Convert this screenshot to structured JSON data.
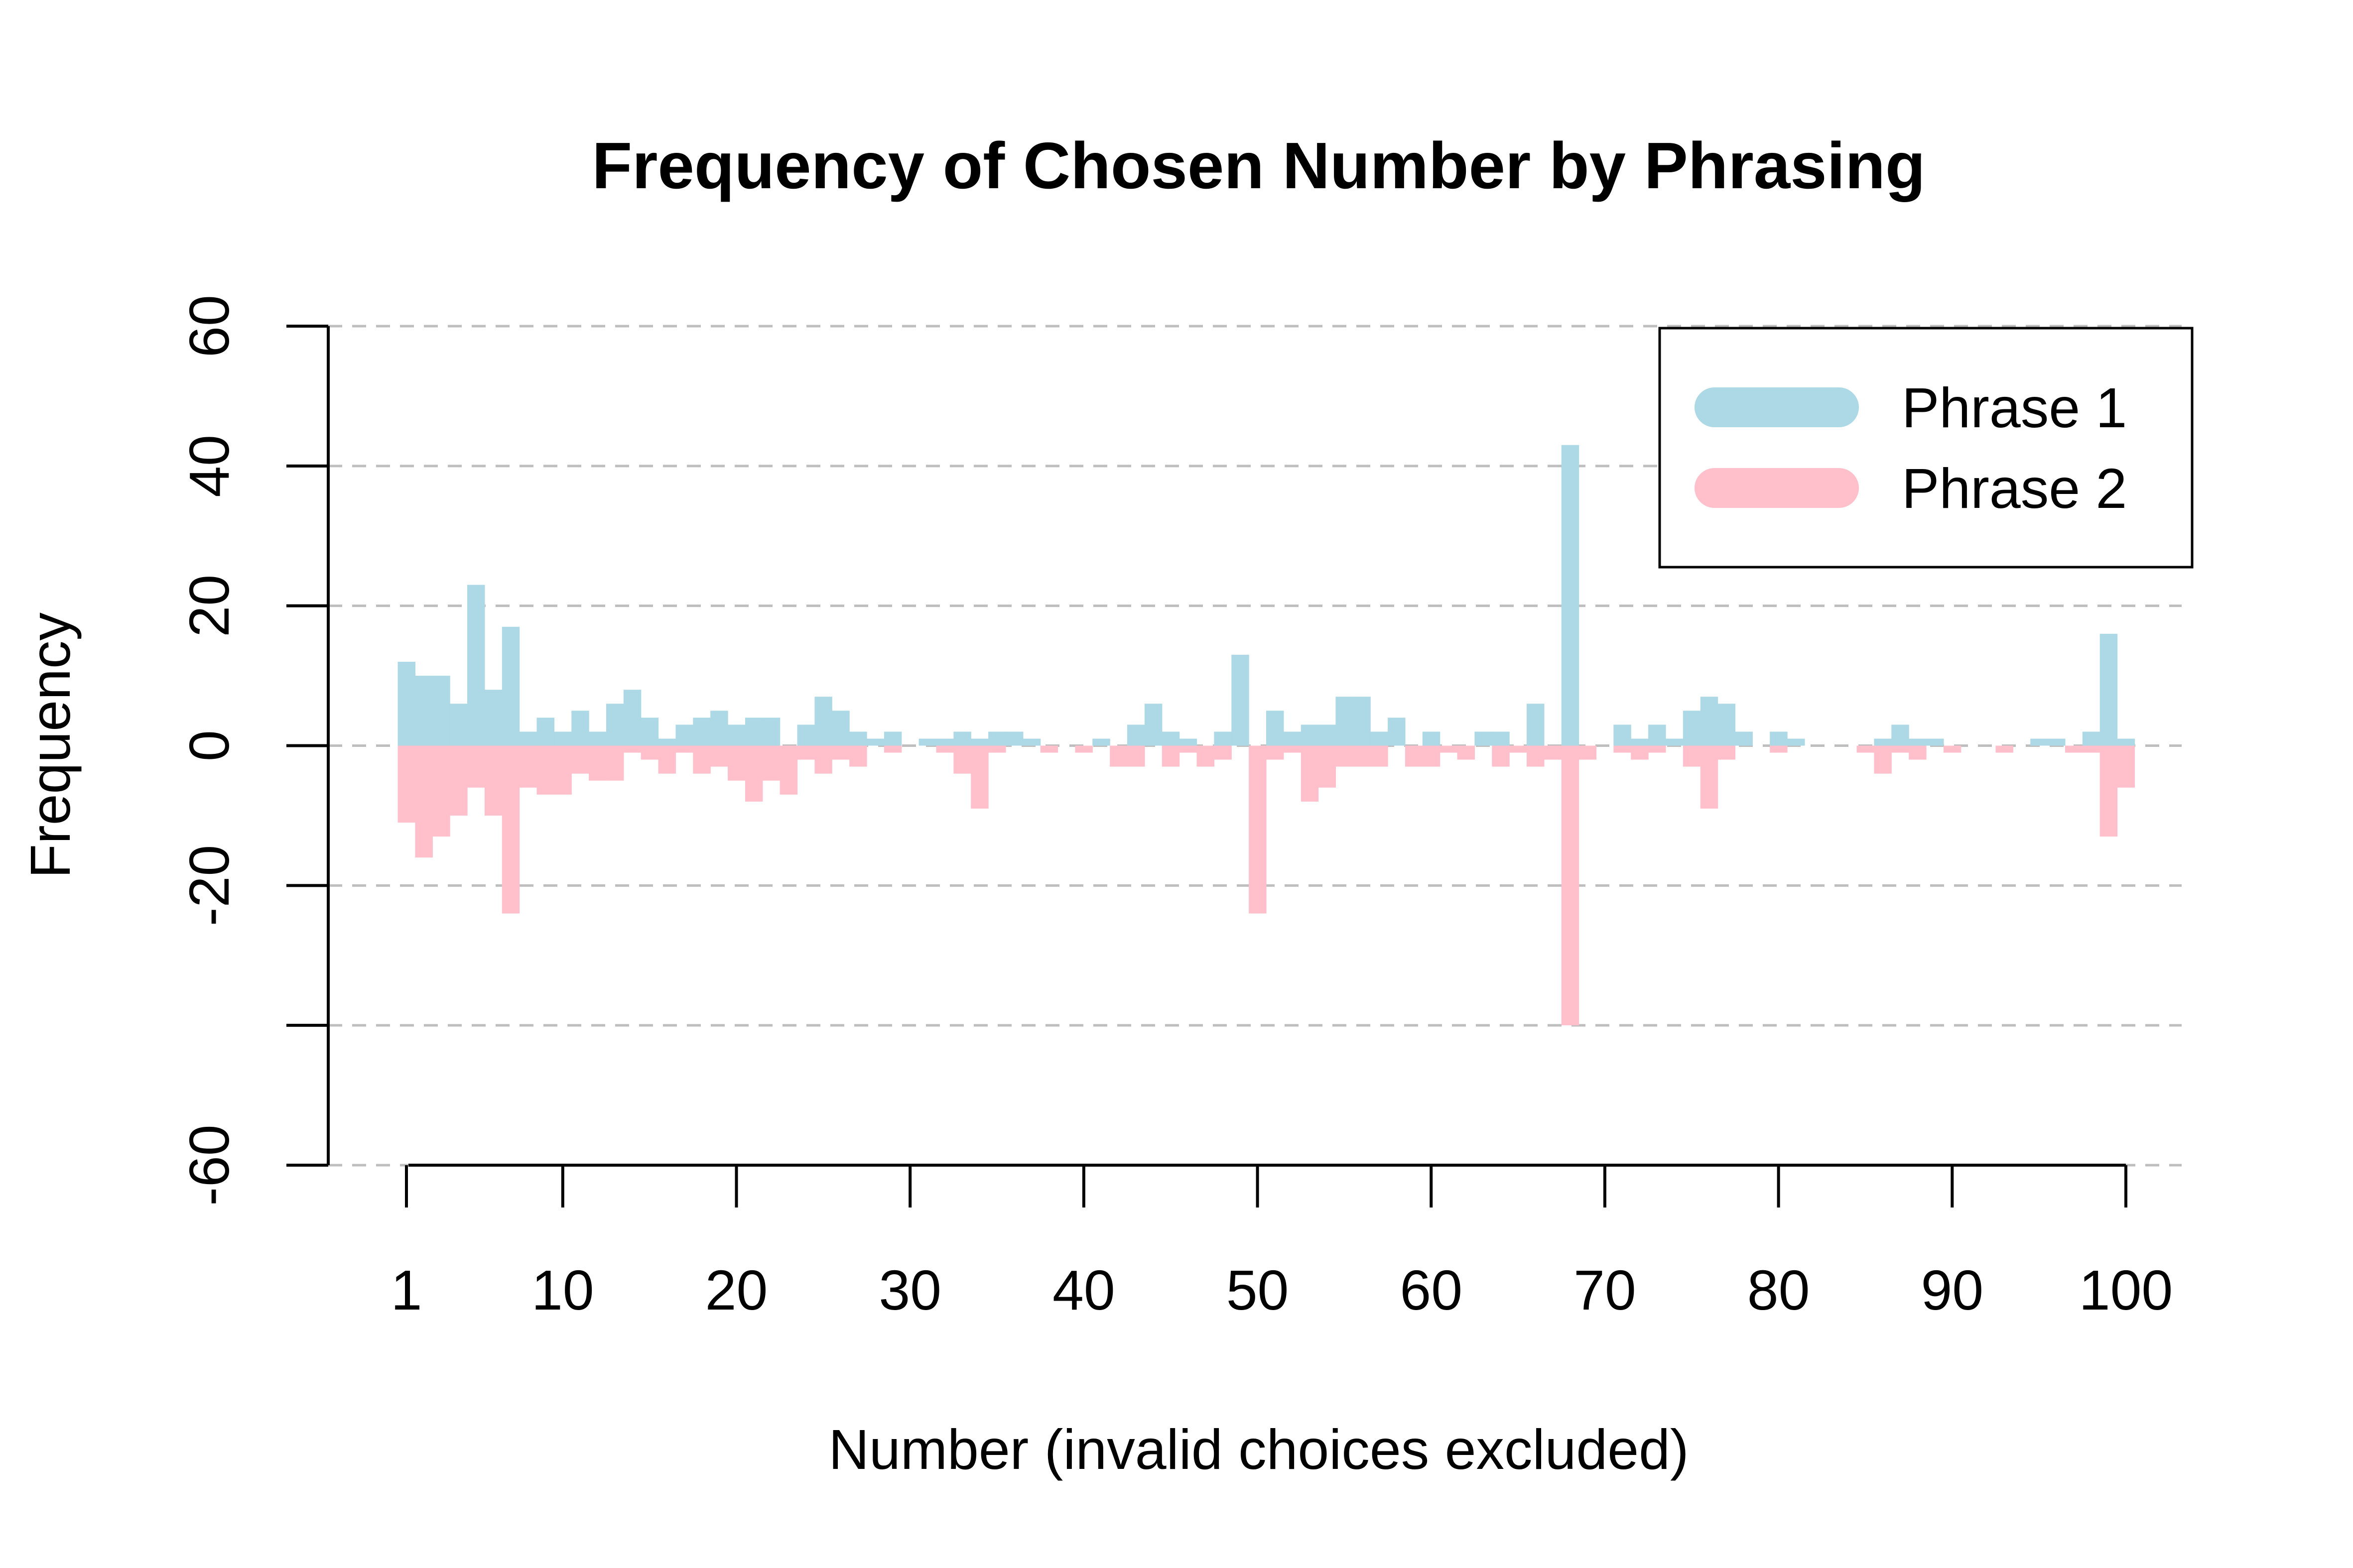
{
  "chart_data": {
    "type": "bar",
    "title": "Frequency of Chosen Number by Phrasing",
    "xlabel": "Number (invalid choices excluded)",
    "ylabel": "Frequency",
    "xlim": [
      1,
      100
    ],
    "ylim": [
      -60,
      60
    ],
    "x_ticks": [
      1,
      10,
      20,
      30,
      40,
      50,
      60,
      70,
      80,
      90,
      100
    ],
    "y_ticks": [
      -60,
      -20,
      0,
      20,
      40,
      60
    ],
    "y_gridlines": [
      -60,
      -40,
      -20,
      0,
      20,
      40,
      60
    ],
    "grid": true,
    "legend_position": "top-right",
    "x": [
      1,
      2,
      3,
      4,
      5,
      6,
      7,
      8,
      9,
      10,
      11,
      12,
      13,
      14,
      15,
      16,
      17,
      18,
      19,
      20,
      21,
      22,
      23,
      24,
      25,
      26,
      27,
      28,
      29,
      30,
      31,
      32,
      33,
      34,
      35,
      36,
      37,
      38,
      39,
      40,
      41,
      42,
      43,
      44,
      45,
      46,
      47,
      48,
      49,
      50,
      51,
      52,
      53,
      54,
      55,
      56,
      57,
      58,
      59,
      60,
      61,
      62,
      63,
      64,
      65,
      66,
      67,
      68,
      69,
      70,
      71,
      72,
      73,
      74,
      75,
      76,
      77,
      78,
      79,
      80,
      81,
      82,
      83,
      84,
      85,
      86,
      87,
      88,
      89,
      90,
      91,
      92,
      93,
      94,
      95,
      96,
      97,
      98,
      99,
      100
    ],
    "series": [
      {
        "name": "Phrase 1",
        "color": "#add8e6",
        "direction": "up",
        "values": [
          12,
          10,
          10,
          6,
          23,
          8,
          17,
          2,
          4,
          2,
          5,
          2,
          6,
          8,
          4,
          1,
          3,
          4,
          5,
          3,
          4,
          4,
          0,
          3,
          7,
          5,
          2,
          1,
          2,
          0,
          1,
          1,
          2,
          1,
          2,
          2,
          1,
          0,
          0,
          0,
          1,
          0,
          3,
          6,
          2,
          1,
          0,
          2,
          13,
          0,
          5,
          2,
          3,
          3,
          7,
          7,
          2,
          4,
          0,
          2,
          0,
          0,
          2,
          2,
          0,
          6,
          0,
          43,
          0,
          0,
          3,
          1,
          3,
          1,
          5,
          7,
          6,
          2,
          0,
          2,
          1,
          0,
          0,
          0,
          0,
          1,
          3,
          1,
          1,
          0,
          0,
          0,
          0,
          0,
          1,
          1,
          0,
          2,
          16,
          1
        ]
      },
      {
        "name": "Phrase 2",
        "color": "#ffc0cb",
        "direction": "down",
        "values": [
          11,
          16,
          13,
          10,
          6,
          10,
          24,
          6,
          7,
          7,
          4,
          5,
          5,
          1,
          2,
          4,
          1,
          4,
          3,
          5,
          8,
          5,
          7,
          2,
          4,
          2,
          3,
          0,
          1,
          0,
          0,
          1,
          4,
          9,
          1,
          0,
          0,
          1,
          0,
          1,
          0,
          3,
          3,
          0,
          3,
          1,
          3,
          2,
          0,
          24,
          2,
          1,
          8,
          6,
          3,
          3,
          3,
          0,
          3,
          3,
          1,
          2,
          0,
          3,
          1,
          3,
          2,
          40,
          2,
          0,
          1,
          2,
          1,
          0,
          3,
          9,
          2,
          0,
          0,
          1,
          0,
          0,
          0,
          0,
          1,
          4,
          1,
          2,
          0,
          1,
          0,
          0,
          1,
          0,
          0,
          0,
          1,
          1,
          13,
          6
        ]
      }
    ]
  }
}
